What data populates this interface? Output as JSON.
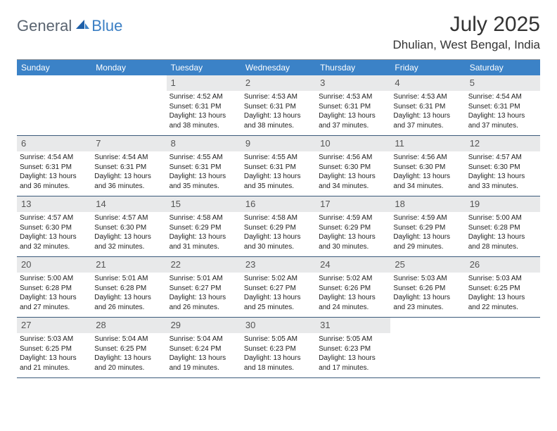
{
  "brand": {
    "general": "General",
    "blue": "Blue"
  },
  "title": "July 2025",
  "location": "Dhulian, West Bengal, India",
  "colors": {
    "header_bg": "#3b82c7",
    "header_text": "#ffffff",
    "daynum_bg": "#e8e9ea",
    "border": "#3b5a7a",
    "brand_gray": "#5a6470",
    "brand_blue": "#3b7fc4"
  },
  "weekdays": [
    "Sunday",
    "Monday",
    "Tuesday",
    "Wednesday",
    "Thursday",
    "Friday",
    "Saturday"
  ],
  "layout": {
    "start_weekday_index": 2,
    "days_in_month": 31,
    "cols": 7,
    "fontsize_day_body": 10,
    "fontsize_day_num": 13,
    "fontsize_weekday": 12
  },
  "days": [
    {
      "n": 1,
      "sunrise": "4:52 AM",
      "sunset": "6:31 PM",
      "daylight": "13 hours and 38 minutes."
    },
    {
      "n": 2,
      "sunrise": "4:53 AM",
      "sunset": "6:31 PM",
      "daylight": "13 hours and 38 minutes."
    },
    {
      "n": 3,
      "sunrise": "4:53 AM",
      "sunset": "6:31 PM",
      "daylight": "13 hours and 37 minutes."
    },
    {
      "n": 4,
      "sunrise": "4:53 AM",
      "sunset": "6:31 PM",
      "daylight": "13 hours and 37 minutes."
    },
    {
      "n": 5,
      "sunrise": "4:54 AM",
      "sunset": "6:31 PM",
      "daylight": "13 hours and 37 minutes."
    },
    {
      "n": 6,
      "sunrise": "4:54 AM",
      "sunset": "6:31 PM",
      "daylight": "13 hours and 36 minutes."
    },
    {
      "n": 7,
      "sunrise": "4:54 AM",
      "sunset": "6:31 PM",
      "daylight": "13 hours and 36 minutes."
    },
    {
      "n": 8,
      "sunrise": "4:55 AM",
      "sunset": "6:31 PM",
      "daylight": "13 hours and 35 minutes."
    },
    {
      "n": 9,
      "sunrise": "4:55 AM",
      "sunset": "6:31 PM",
      "daylight": "13 hours and 35 minutes."
    },
    {
      "n": 10,
      "sunrise": "4:56 AM",
      "sunset": "6:30 PM",
      "daylight": "13 hours and 34 minutes."
    },
    {
      "n": 11,
      "sunrise": "4:56 AM",
      "sunset": "6:30 PM",
      "daylight": "13 hours and 34 minutes."
    },
    {
      "n": 12,
      "sunrise": "4:57 AM",
      "sunset": "6:30 PM",
      "daylight": "13 hours and 33 minutes."
    },
    {
      "n": 13,
      "sunrise": "4:57 AM",
      "sunset": "6:30 PM",
      "daylight": "13 hours and 32 minutes."
    },
    {
      "n": 14,
      "sunrise": "4:57 AM",
      "sunset": "6:30 PM",
      "daylight": "13 hours and 32 minutes."
    },
    {
      "n": 15,
      "sunrise": "4:58 AM",
      "sunset": "6:29 PM",
      "daylight": "13 hours and 31 minutes."
    },
    {
      "n": 16,
      "sunrise": "4:58 AM",
      "sunset": "6:29 PM",
      "daylight": "13 hours and 30 minutes."
    },
    {
      "n": 17,
      "sunrise": "4:59 AM",
      "sunset": "6:29 PM",
      "daylight": "13 hours and 30 minutes."
    },
    {
      "n": 18,
      "sunrise": "4:59 AM",
      "sunset": "6:29 PM",
      "daylight": "13 hours and 29 minutes."
    },
    {
      "n": 19,
      "sunrise": "5:00 AM",
      "sunset": "6:28 PM",
      "daylight": "13 hours and 28 minutes."
    },
    {
      "n": 20,
      "sunrise": "5:00 AM",
      "sunset": "6:28 PM",
      "daylight": "13 hours and 27 minutes."
    },
    {
      "n": 21,
      "sunrise": "5:01 AM",
      "sunset": "6:28 PM",
      "daylight": "13 hours and 26 minutes."
    },
    {
      "n": 22,
      "sunrise": "5:01 AM",
      "sunset": "6:27 PM",
      "daylight": "13 hours and 26 minutes."
    },
    {
      "n": 23,
      "sunrise": "5:02 AM",
      "sunset": "6:27 PM",
      "daylight": "13 hours and 25 minutes."
    },
    {
      "n": 24,
      "sunrise": "5:02 AM",
      "sunset": "6:26 PM",
      "daylight": "13 hours and 24 minutes."
    },
    {
      "n": 25,
      "sunrise": "5:03 AM",
      "sunset": "6:26 PM",
      "daylight": "13 hours and 23 minutes."
    },
    {
      "n": 26,
      "sunrise": "5:03 AM",
      "sunset": "6:25 PM",
      "daylight": "13 hours and 22 minutes."
    },
    {
      "n": 27,
      "sunrise": "5:03 AM",
      "sunset": "6:25 PM",
      "daylight": "13 hours and 21 minutes."
    },
    {
      "n": 28,
      "sunrise": "5:04 AM",
      "sunset": "6:25 PM",
      "daylight": "13 hours and 20 minutes."
    },
    {
      "n": 29,
      "sunrise": "5:04 AM",
      "sunset": "6:24 PM",
      "daylight": "13 hours and 19 minutes."
    },
    {
      "n": 30,
      "sunrise": "5:05 AM",
      "sunset": "6:23 PM",
      "daylight": "13 hours and 18 minutes."
    },
    {
      "n": 31,
      "sunrise": "5:05 AM",
      "sunset": "6:23 PM",
      "daylight": "13 hours and 17 minutes."
    }
  ],
  "labels": {
    "sunrise_prefix": "Sunrise: ",
    "sunset_prefix": "Sunset: ",
    "daylight_prefix": "Daylight: "
  }
}
